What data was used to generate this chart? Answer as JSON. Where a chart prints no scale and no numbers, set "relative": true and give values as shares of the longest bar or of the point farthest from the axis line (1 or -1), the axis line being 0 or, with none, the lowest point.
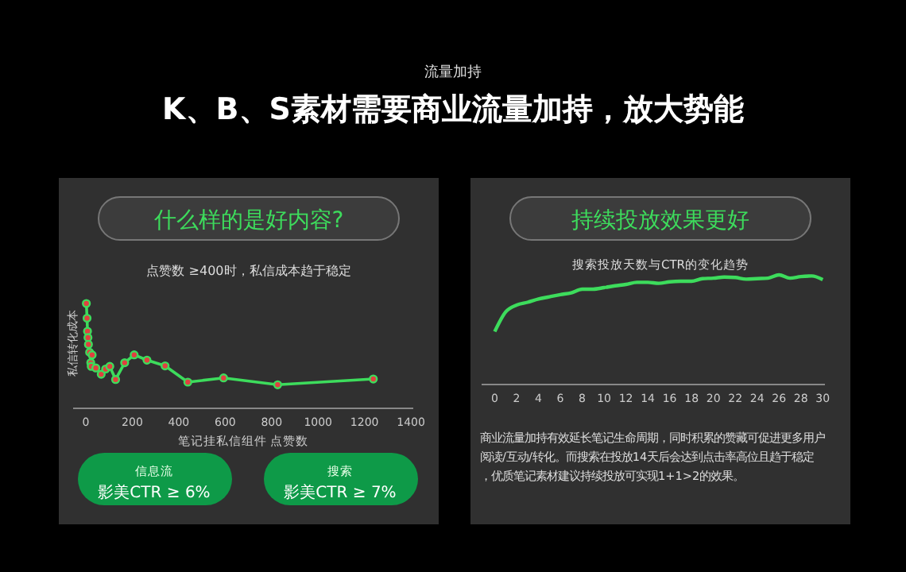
{
  "chart_data": [
    {
      "type": "other",
      "title": "K、B、S素材需要商业流量加持，放大势能",
      "subtitle": "流量加持"
    },
    {
      "type": "line",
      "title": "什么样的是好内容?",
      "subtitle": "点赞数 ≥400时，私信成本趋于稳定",
      "xlabel": "笔记挂私信组件 点赞数",
      "ylabel": "私信转化成本",
      "relative": true,
      "marker": "circle",
      "xlim": [
        -55,
        1410
      ],
      "xticks": [
        0,
        200,
        400,
        600,
        800,
        1000,
        1200,
        1400
      ],
      "x": [
        2,
        5,
        7,
        9,
        11,
        16,
        21,
        27,
        23,
        43,
        66,
        85,
        103,
        128,
        167,
        208,
        263,
        341,
        439,
        593,
        826,
        1238
      ],
      "series": [
        {
          "color": "#3ddc5c",
          "values": [
            1.0,
            0.86,
            0.735,
            0.675,
            0.61,
            0.535,
            0.435,
            0.51,
            0.4,
            0.385,
            0.325,
            0.375,
            0.4,
            0.275,
            0.435,
            0.51,
            0.46,
            0.405,
            0.25,
            0.29,
            0.225,
            0.28
          ]
        }
      ],
      "annotations": [
        "信息流",
        "影美CTR ≥ 6%",
        "搜索",
        "影美CTR ≥ 7%"
      ]
    },
    {
      "type": "line",
      "title": "持续投放效果更好",
      "subtitle": "搜索投放天数与CTR的变化趋势",
      "relative": true,
      "xlim": [
        -1.2,
        30.2
      ],
      "xticks": [
        0,
        2,
        4,
        6,
        8,
        10,
        12,
        14,
        16,
        18,
        20,
        22,
        24,
        26,
        28,
        30
      ],
      "x": [
        0,
        1,
        2,
        3,
        4,
        5,
        6,
        7,
        8,
        9,
        10,
        11,
        12,
        13,
        14,
        15,
        16,
        17,
        18,
        19,
        20,
        21,
        22,
        23,
        24,
        25,
        26,
        27,
        28,
        29,
        30
      ],
      "series": [
        {
          "color": "#3ddc5c",
          "values": [
            0.483,
            0.662,
            0.725,
            0.75,
            0.78,
            0.8,
            0.82,
            0.836,
            0.87,
            0.87,
            0.884,
            0.9,
            0.913,
            0.932,
            0.932,
            0.923,
            0.937,
            0.942,
            0.942,
            0.966,
            0.97,
            0.98,
            0.976,
            0.961,
            0.966,
            0.97,
            1.0,
            0.97,
            0.985,
            0.99,
            0.957
          ]
        }
      ],
      "annotations": [
        "商业流量加持有效延长笔记生命周期，同时积累的赞藏可促进更多用户阅读/互动/转化。而搜索在投放14天后会达到点击率高位且趋于稳定，优质笔记素材建议持续投放可实现1+1>2的效果。"
      ]
    }
  ]
}
